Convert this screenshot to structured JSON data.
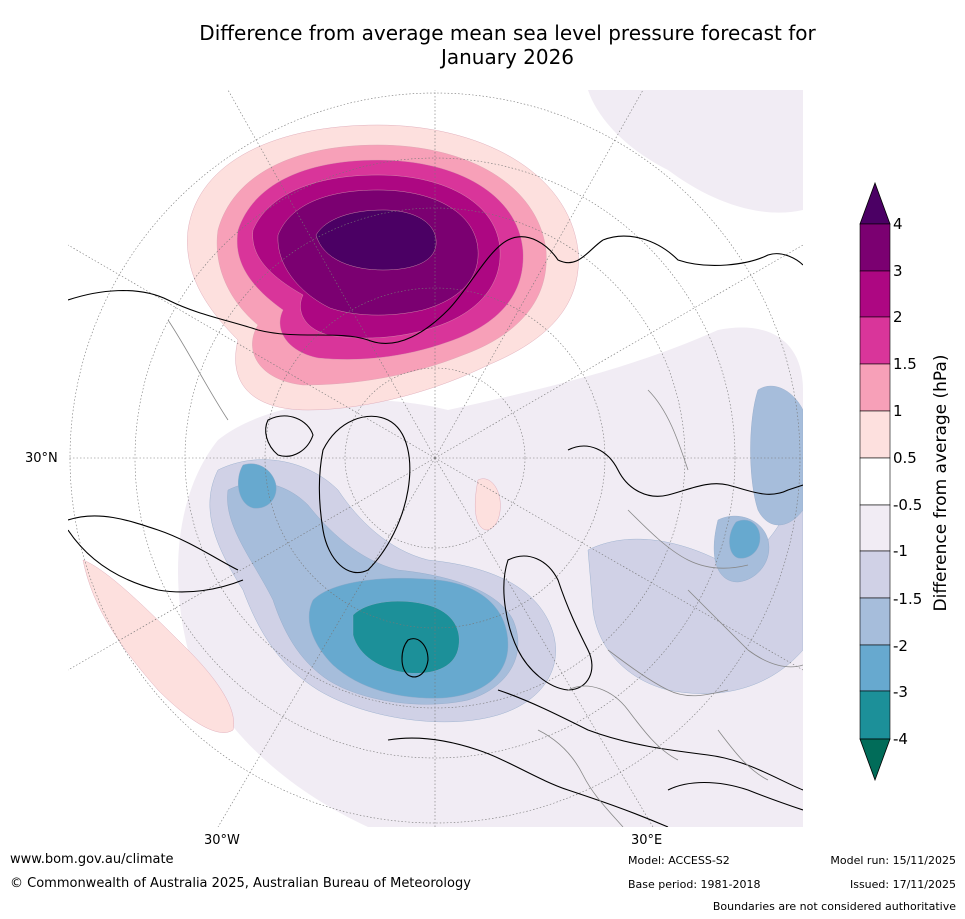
{
  "title_line1": "Difference from average mean sea level pressure forecast for",
  "title_line2": "January 2026",
  "map": {
    "lat_label": "30°N",
    "lon_label_west": "30°W",
    "lon_label_east": "30°E"
  },
  "colorbar": {
    "title": "Difference from average (hPa)",
    "ticks": [
      "4",
      "3",
      "2",
      "1.5",
      "1",
      "0.5",
      "-0.5",
      "-1",
      "-1.5",
      "-2",
      "-3",
      "-4"
    ],
    "colors": {
      "gt4": "#4b0064",
      "b3_4": "#7b0071",
      "b2_3": "#ad0782",
      "b15_2": "#d9359a",
      "b1_15": "#f7a0b8",
      "b05_1": "#fde0de",
      "neutral": "#ffffff",
      "bm1_m05": "#f1ecf4",
      "bm15_m1": "#d0d1e6",
      "bm2_m15": "#a6bddb",
      "bm3_m2": "#67a9cf",
      "bm4_m3": "#1c9099",
      "ltm4": "#016c59"
    }
  },
  "footer": {
    "website": "www.bom.gov.au/climate",
    "copyright": "© Commonwealth of Australia 2025, Australian Bureau of Meteorology",
    "model": "Model: ACCESS-S2",
    "base_period": "Base period: 1981-2018",
    "model_run": "Model run: 15/11/2025",
    "issued": "Issued: 17/11/2025",
    "disclaimer": "Boundaries are not considered authoritative"
  }
}
